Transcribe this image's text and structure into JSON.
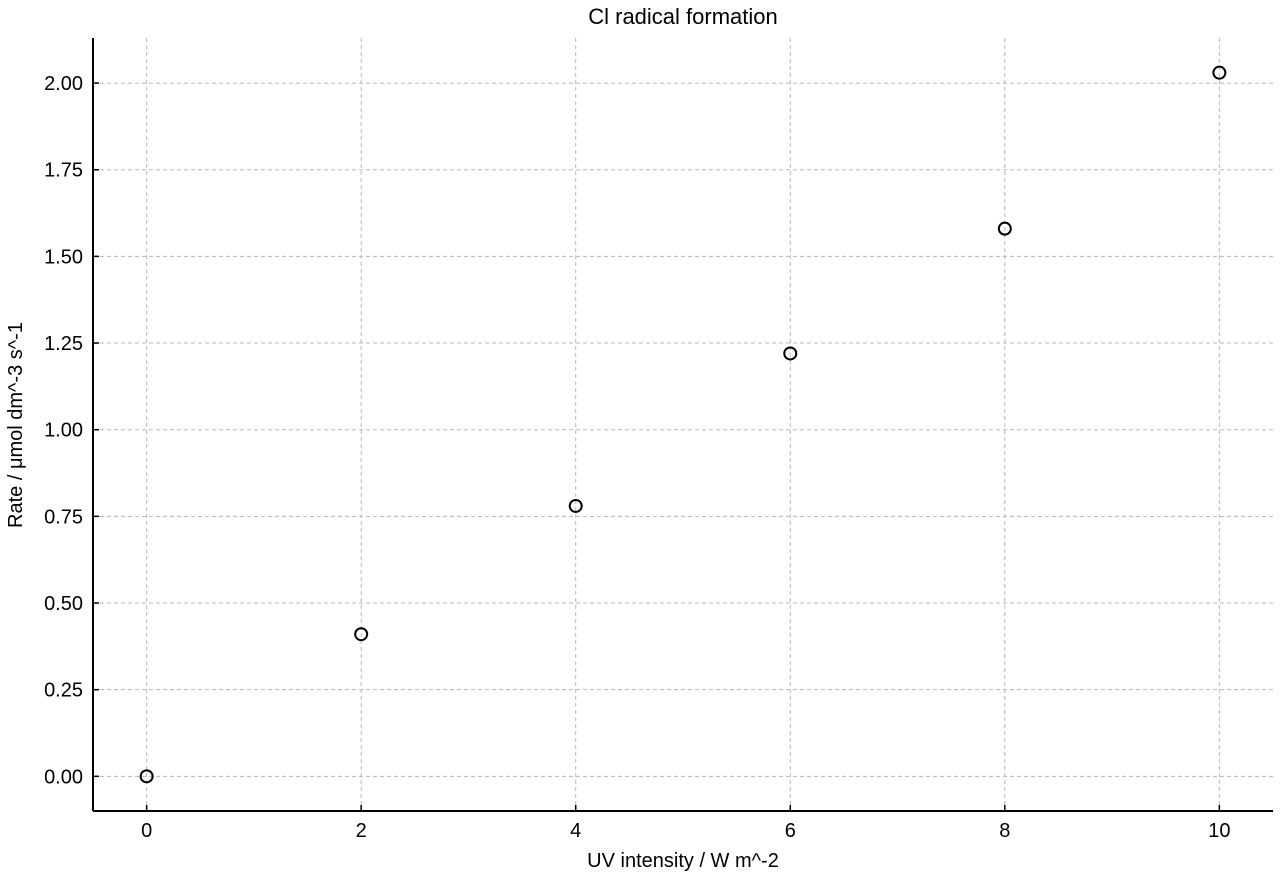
{
  "chart_data": {
    "type": "scatter",
    "title": "Cl radical formation",
    "xlabel": "UV intensity / W m^-2",
    "ylabel": "Rate / μmol dm^-3 s^-1",
    "x": [
      0,
      2,
      4,
      6,
      8,
      10
    ],
    "y": [
      0.0,
      0.41,
      0.78,
      1.22,
      1.58,
      2.03
    ],
    "xlim": [
      -0.5,
      10.5
    ],
    "ylim": [
      -0.1,
      2.13
    ],
    "xticks": [
      0,
      2,
      4,
      6,
      8,
      10
    ],
    "xtick_labels": [
      "0",
      "2",
      "4",
      "6",
      "8",
      "10"
    ],
    "yticks": [
      0,
      0.25,
      0.5,
      0.75,
      1.0,
      1.25,
      1.5,
      1.75,
      2.0
    ],
    "ytick_labels": [
      "0.00",
      "0.25",
      "0.50",
      "0.75",
      "1.00",
      "1.25",
      "1.50",
      "1.75",
      "2.00"
    ],
    "grid": true,
    "marker": "open-circle",
    "marker_color": "#000000",
    "grid_color": "#b8b8b8",
    "axis_color": "#000000"
  }
}
